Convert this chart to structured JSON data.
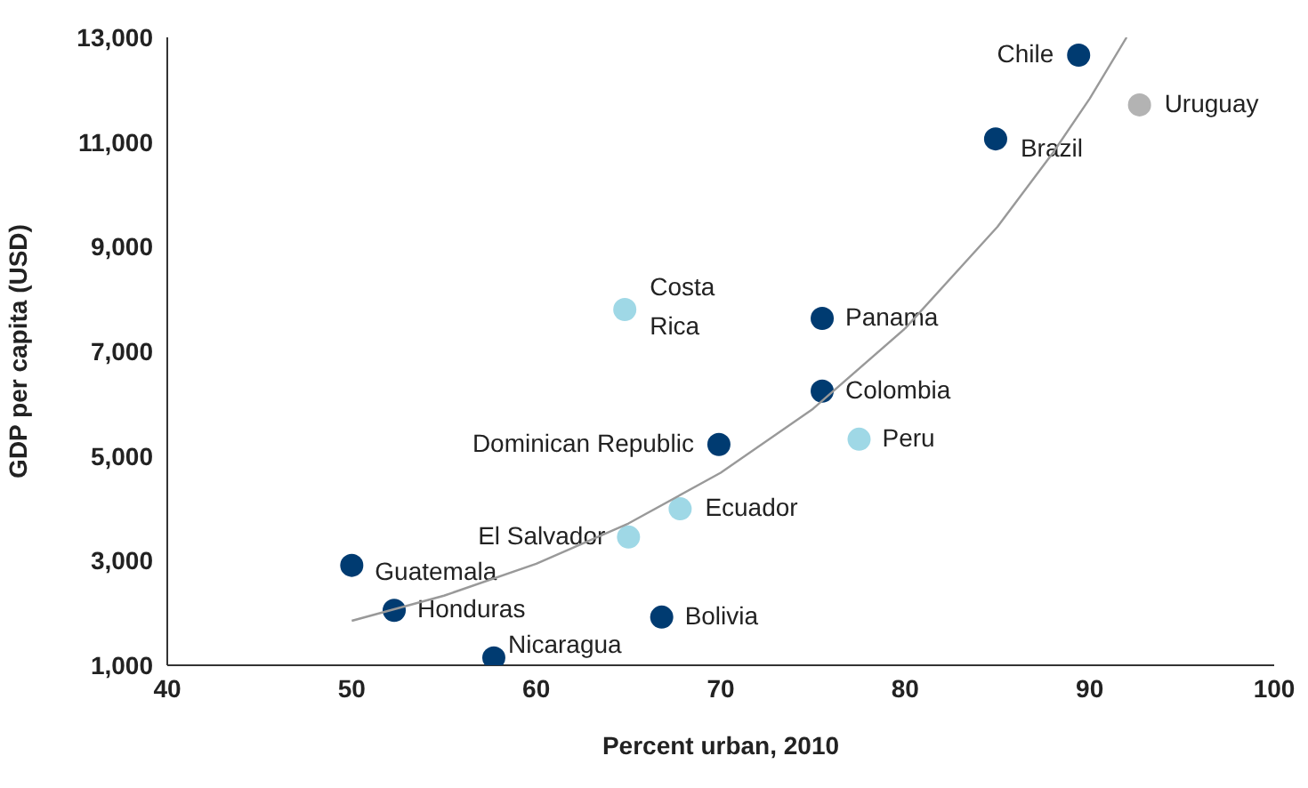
{
  "chart_data": {
    "type": "scatter",
    "xlabel": "Percent urban, 2010",
    "ylabel": "GDP per capita (USD)",
    "xlim": [
      40,
      100
    ],
    "xticks": [
      40,
      50,
      60,
      70,
      80,
      90,
      100
    ],
    "ylim": [
      1000,
      13000
    ],
    "yticks": [
      {
        "value": 1000,
        "label": "1,000"
      },
      {
        "value": 3000,
        "label": "3,000"
      },
      {
        "value": 5000,
        "label": "5,000"
      },
      {
        "value": 7000,
        "label": "7,000"
      },
      {
        "value": 9000,
        "label": "9,000"
      },
      {
        "value": 11000,
        "label": "11,000"
      },
      {
        "value": 13000,
        "label": "13,000"
      }
    ],
    "grid": false,
    "legend": false,
    "marker": "circle",
    "series": [
      {
        "name": "Chile",
        "color": "#003b71",
        "x": [
          89.4
        ],
        "values": [
          12660
        ]
      },
      {
        "name": "Uruguay",
        "color": "#b3b3b3",
        "x": [
          92.7
        ],
        "values": [
          11710
        ]
      },
      {
        "name": "Brazil",
        "color": "#003b71",
        "x": [
          84.9
        ],
        "values": [
          11060
        ]
      },
      {
        "name": "Costa Rica",
        "color": "#9fd8e6",
        "x": [
          64.8
        ],
        "values": [
          7800
        ]
      },
      {
        "name": "Panama",
        "color": "#003b71",
        "x": [
          75.5
        ],
        "values": [
          7630
        ]
      },
      {
        "name": "Colombia",
        "color": "#003b71",
        "x": [
          75.5
        ],
        "values": [
          6240
        ]
      },
      {
        "name": "Peru",
        "color": "#9fd8e6",
        "x": [
          77.5
        ],
        "values": [
          5320
        ]
      },
      {
        "name": "Dominican Republic",
        "color": "#003b71",
        "x": [
          69.9
        ],
        "values": [
          5220
        ]
      },
      {
        "name": "Ecuador",
        "color": "#9fd8e6",
        "x": [
          67.8
        ],
        "values": [
          3990
        ]
      },
      {
        "name": "El Salvador",
        "color": "#9fd8e6",
        "x": [
          65.0
        ],
        "values": [
          3450
        ]
      },
      {
        "name": "Guatemala",
        "color": "#003b71",
        "x": [
          50.0
        ],
        "values": [
          2910
        ]
      },
      {
        "name": "Honduras",
        "color": "#003b71",
        "x": [
          52.3
        ],
        "values": [
          2050
        ]
      },
      {
        "name": "Bolivia",
        "color": "#003b71",
        "x": [
          66.8
        ],
        "values": [
          1920
        ]
      },
      {
        "name": "Nicaragua",
        "color": "#003b71",
        "x": [
          57.7
        ],
        "values": [
          1140
        ]
      },
      {
        "type": "line",
        "marker": "none",
        "color": "#999999",
        "x": [
          50,
          55,
          60,
          65,
          70,
          75,
          80,
          85,
          88,
          90,
          92
        ],
        "values": [
          1850,
          2330,
          2940,
          3710,
          4680,
          5900,
          7440,
          9380,
          10790,
          11830,
          13000
        ]
      }
    ]
  }
}
